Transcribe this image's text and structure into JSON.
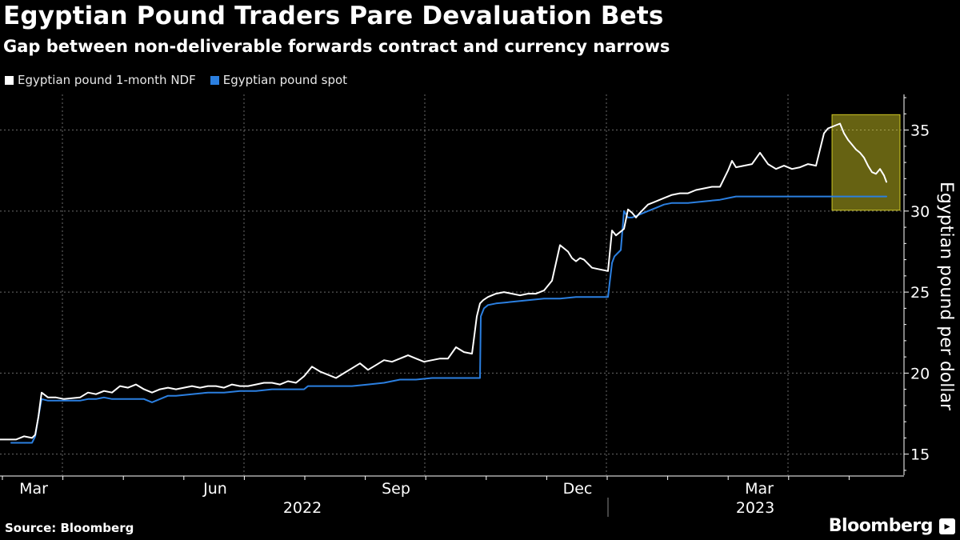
{
  "header": {
    "title": "Egyptian Pound Traders Pare Devaluation Bets",
    "subtitle": "Gap between non-deliverable forwards contract and currency narrows"
  },
  "legend": {
    "items": [
      {
        "label": "Egyptian pound 1-month NDF",
        "color": "#ffffff"
      },
      {
        "label": "Egyptian pound spot",
        "color": "#2b7fe0"
      }
    ]
  },
  "footer": {
    "source": "Source: Bloomberg",
    "brand": "Bloomberg"
  },
  "chart_data": {
    "type": "line",
    "title": "Egyptian Pound Traders Pare Devaluation Bets",
    "xlabel": "",
    "ylabel": "Egyptian pound per dollar",
    "ylim": [
      13.7,
      37.2
    ],
    "xlim": [
      0,
      1128
    ],
    "y_ticks": [
      15,
      20,
      25,
      30,
      35
    ],
    "x_ticks": [
      {
        "label": "Mar",
        "x": 78
      },
      {
        "label": "Jun",
        "x": 305
      },
      {
        "label": "Sep",
        "x": 531
      },
      {
        "label": "Dec",
        "x": 758
      },
      {
        "label": "Mar",
        "x": 985
      }
    ],
    "year_labels": [
      {
        "label": "2022",
        "x": 378
      },
      {
        "label": "2023",
        "x": 944
      }
    ],
    "year_divider_x": 760,
    "highlight_box": {
      "x0": 1040,
      "x1": 1125,
      "y0": 30.05,
      "y1": 35.95,
      "color": "#f2ea2a"
    },
    "grid": true,
    "legend_position": "top-left",
    "series": [
      {
        "name": "Egyptian pound 1-month NDF",
        "color": "#ffffff",
        "x": [
          0,
          20,
          30,
          40,
          44,
          48,
          52,
          60,
          70,
          80,
          100,
          110,
          120,
          130,
          140,
          150,
          160,
          170,
          180,
          190,
          200,
          210,
          220,
          230,
          240,
          250,
          260,
          270,
          280,
          290,
          300,
          310,
          320,
          330,
          340,
          350,
          360,
          370,
          380,
          390,
          400,
          410,
          420,
          430,
          440,
          450,
          460,
          470,
          480,
          490,
          500,
          510,
          520,
          530,
          540,
          550,
          560,
          570,
          580,
          590,
          596,
          600,
          604,
          610,
          620,
          630,
          640,
          650,
          660,
          670,
          680,
          690,
          700,
          710,
          715,
          720,
          725,
          730,
          740,
          750,
          760,
          765,
          770,
          775,
          780,
          785,
          790,
          795,
          800,
          810,
          820,
          830,
          840,
          850,
          860,
          870,
          880,
          890,
          900,
          905,
          910,
          915,
          920,
          930,
          940,
          950,
          960,
          970,
          980,
          990,
          1000,
          1010,
          1020,
          1025,
          1030,
          1035,
          1040,
          1045,
          1050,
          1055,
          1060,
          1065,
          1070,
          1075,
          1080,
          1085,
          1090,
          1095,
          1100,
          1105,
          1108
        ],
        "values": [
          15.9,
          15.9,
          16.1,
          16.0,
          16.2,
          17.3,
          18.8,
          18.5,
          18.5,
          18.4,
          18.5,
          18.8,
          18.7,
          18.9,
          18.8,
          19.2,
          19.1,
          19.3,
          19.0,
          18.8,
          19.0,
          19.1,
          19.0,
          19.1,
          19.2,
          19.1,
          19.2,
          19.2,
          19.1,
          19.3,
          19.2,
          19.2,
          19.3,
          19.4,
          19.4,
          19.3,
          19.5,
          19.4,
          19.8,
          20.4,
          20.1,
          19.9,
          19.7,
          20.0,
          20.3,
          20.6,
          20.2,
          20.5,
          20.8,
          20.7,
          20.9,
          21.1,
          20.9,
          20.7,
          20.8,
          20.9,
          20.9,
          21.6,
          21.3,
          21.2,
          23.5,
          24.3,
          24.5,
          24.7,
          24.9,
          25.0,
          24.9,
          24.8,
          24.9,
          24.9,
          25.1,
          25.7,
          27.9,
          27.5,
          27.1,
          26.9,
          27.1,
          27.0,
          26.5,
          26.4,
          26.3,
          28.8,
          28.5,
          28.7,
          28.9,
          30.1,
          29.9,
          29.6,
          29.9,
          30.4,
          30.6,
          30.8,
          31.0,
          31.1,
          31.1,
          31.3,
          31.4,
          31.5,
          31.5,
          32.0,
          32.5,
          33.1,
          32.7,
          32.8,
          32.9,
          33.6,
          32.9,
          32.6,
          32.8,
          32.6,
          32.7,
          32.9,
          32.8,
          33.8,
          34.8,
          35.1,
          35.2,
          35.3,
          35.4,
          34.8,
          34.4,
          34.1,
          33.8,
          33.6,
          33.3,
          32.8,
          32.4,
          32.3,
          32.6,
          32.2,
          31.8
        ]
      },
      {
        "name": "Egyptian pound spot",
        "color": "#2b7fe0",
        "x": [
          14,
          36,
          40,
          44,
          48,
          52,
          60,
          80,
          100,
          110,
          120,
          130,
          140,
          150,
          160,
          180,
          190,
          200,
          210,
          220,
          240,
          260,
          280,
          300,
          320,
          340,
          360,
          380,
          385,
          390,
          400,
          420,
          440,
          460,
          480,
          500,
          520,
          540,
          560,
          580,
          590,
          600,
          601,
          605,
          610,
          620,
          640,
          660,
          680,
          700,
          720,
          740,
          760,
          765,
          768,
          772,
          776,
          780,
          785,
          790,
          800,
          810,
          820,
          830,
          840,
          860,
          880,
          900,
          910,
          920,
          940,
          960,
          980,
          1000,
          1020,
          1040,
          1060,
          1080,
          1100,
          1108
        ],
        "values": [
          15.7,
          15.7,
          15.7,
          16.1,
          17.3,
          18.4,
          18.3,
          18.3,
          18.3,
          18.4,
          18.4,
          18.5,
          18.4,
          18.4,
          18.4,
          18.4,
          18.2,
          18.4,
          18.6,
          18.6,
          18.7,
          18.8,
          18.8,
          18.9,
          18.9,
          19.0,
          19.0,
          19.0,
          19.2,
          19.2,
          19.2,
          19.2,
          19.2,
          19.3,
          19.4,
          19.6,
          19.6,
          19.7,
          19.7,
          19.7,
          19.7,
          19.7,
          23.5,
          24.0,
          24.2,
          24.3,
          24.4,
          24.5,
          24.6,
          24.6,
          24.7,
          24.7,
          24.7,
          26.8,
          27.2,
          27.4,
          27.6,
          30.0,
          29.6,
          29.6,
          29.8,
          30.0,
          30.2,
          30.4,
          30.5,
          30.5,
          30.6,
          30.7,
          30.8,
          30.9,
          30.9,
          30.9,
          30.9,
          30.9,
          30.9,
          30.9,
          30.9,
          30.9,
          30.9,
          30.9
        ]
      }
    ]
  }
}
